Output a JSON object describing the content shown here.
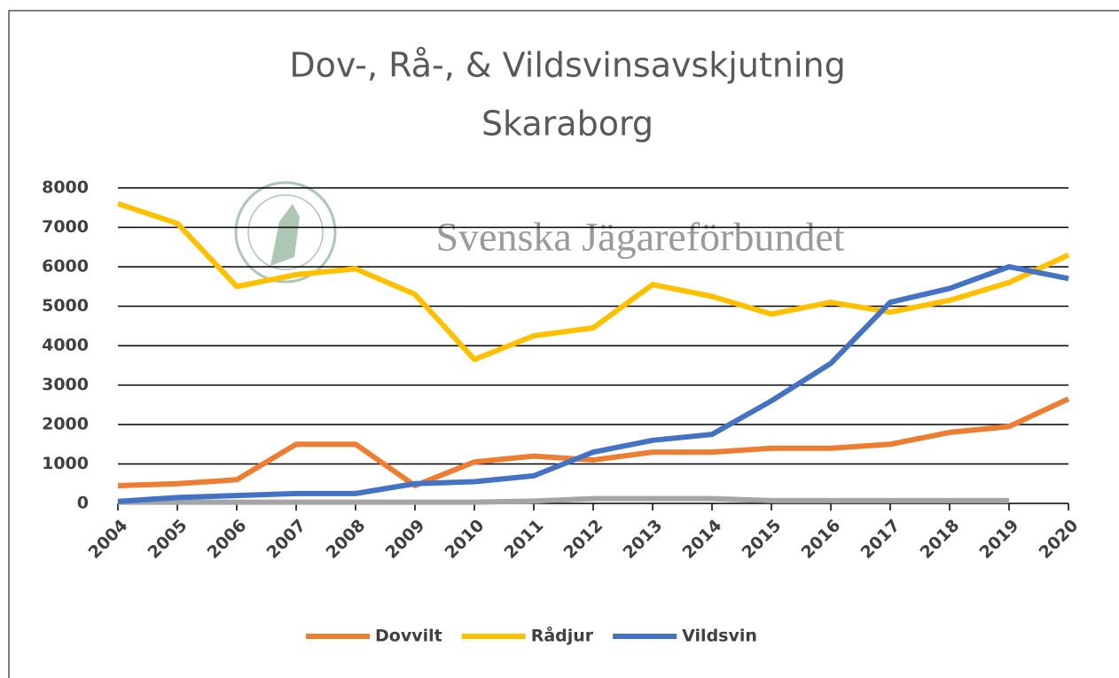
{
  "chart_data": {
    "type": "line",
    "title": "Dov-, Rå-, & Vildsvinsavskjutning",
    "subtitle": "Skaraborg",
    "watermark": "Svenska Jägareförbundet",
    "categories": [
      "2004",
      "2005",
      "2006",
      "2007",
      "2008",
      "2009",
      "2010",
      "2011",
      "2012",
      "2013",
      "2014",
      "2015",
      "2016",
      "2017",
      "2018",
      "2019",
      "2020"
    ],
    "series": [
      {
        "color": "#a5a5a5",
        "values": [
          30,
          30,
          30,
          30,
          30,
          30,
          30,
          60,
          120,
          120,
          120,
          70,
          70,
          70,
          70,
          70,
          null
        ]
      },
      {
        "name": "Dovvilt",
        "color": "#ed7d31",
        "values": [
          450,
          500,
          600,
          1500,
          1500,
          450,
          1050,
          1200,
          1100,
          1300,
          1300,
          1400,
          1400,
          1500,
          1800,
          1950,
          2650
        ]
      },
      {
        "name": "Rådjur",
        "color": "#ffc000",
        "values": [
          7600,
          7100,
          5500,
          5800,
          5950,
          5300,
          3650,
          4250,
          4450,
          5550,
          5250,
          4800,
          5100,
          4850,
          5150,
          5600,
          6300
        ]
      },
      {
        "name": "Vildsvin",
        "color": "#4472c4",
        "values": [
          50,
          150,
          200,
          250,
          250,
          500,
          550,
          700,
          1300,
          1600,
          1750,
          2600,
          3550,
          5100,
          5450,
          6000,
          5700
        ]
      }
    ],
    "ylim": [
      0,
      8000
    ],
    "yticks": [
      0,
      1000,
      2000,
      3000,
      4000,
      5000,
      6000,
      7000,
      8000
    ],
    "grid": true,
    "legend": "bottom"
  }
}
